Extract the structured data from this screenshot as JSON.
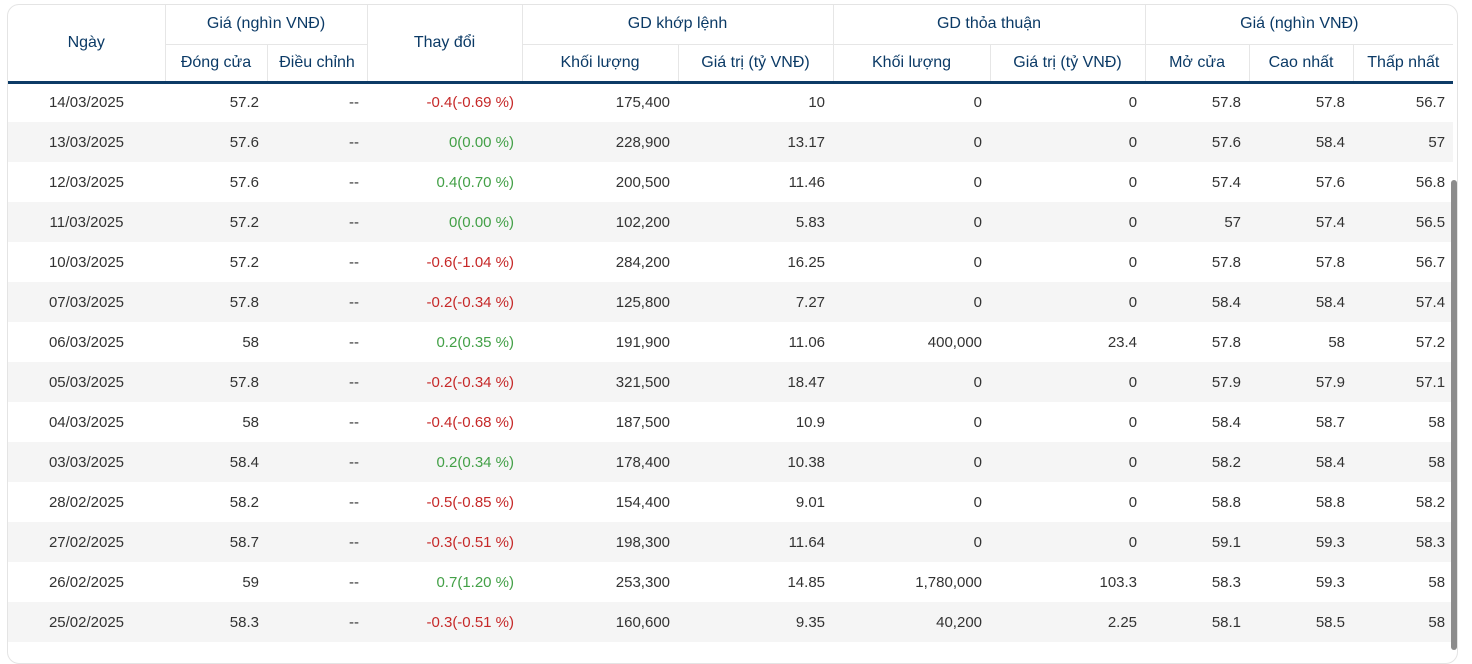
{
  "headers": {
    "date": "Ngày",
    "price_group": "Giá (nghìn VNĐ)",
    "close": "Đóng cửa",
    "adjusted": "Điều chỉnh",
    "change": "Thay đổi",
    "matched_group": "GD khớp lệnh",
    "matched_volume": "Khối lượng",
    "matched_value": "Giá trị (tỷ VNĐ)",
    "deal_group": "GD thỏa thuận",
    "deal_volume": "Khối lượng",
    "deal_value": "Giá trị (tỷ VNĐ)",
    "price_group2": "Giá (nghìn VNĐ)",
    "open": "Mở cửa",
    "high": "Cao nhất",
    "low": "Thấp nhất"
  },
  "colors": {
    "negative": "#c62828",
    "positive": "#43a047",
    "header_text": "#0b3a66"
  },
  "rows": [
    {
      "date": "14/03/2025",
      "close": "57.2",
      "adj": "--",
      "change": "-0.4(-0.69 %)",
      "dir": "neg",
      "mvol": "175,400",
      "mval": "10",
      "dvol": "0",
      "dval": "0",
      "open": "57.8",
      "high": "57.8",
      "low": "56.7"
    },
    {
      "date": "13/03/2025",
      "close": "57.6",
      "adj": "--",
      "change": "0(0.00 %)",
      "dir": "pos",
      "mvol": "228,900",
      "mval": "13.17",
      "dvol": "0",
      "dval": "0",
      "open": "57.6",
      "high": "58.4",
      "low": "57"
    },
    {
      "date": "12/03/2025",
      "close": "57.6",
      "adj": "--",
      "change": "0.4(0.70 %)",
      "dir": "pos",
      "mvol": "200,500",
      "mval": "11.46",
      "dvol": "0",
      "dval": "0",
      "open": "57.4",
      "high": "57.6",
      "low": "56.8"
    },
    {
      "date": "11/03/2025",
      "close": "57.2",
      "adj": "--",
      "change": "0(0.00 %)",
      "dir": "pos",
      "mvol": "102,200",
      "mval": "5.83",
      "dvol": "0",
      "dval": "0",
      "open": "57",
      "high": "57.4",
      "low": "56.5"
    },
    {
      "date": "10/03/2025",
      "close": "57.2",
      "adj": "--",
      "change": "-0.6(-1.04 %)",
      "dir": "neg",
      "mvol": "284,200",
      "mval": "16.25",
      "dvol": "0",
      "dval": "0",
      "open": "57.8",
      "high": "57.8",
      "low": "56.7"
    },
    {
      "date": "07/03/2025",
      "close": "57.8",
      "adj": "--",
      "change": "-0.2(-0.34 %)",
      "dir": "neg",
      "mvol": "125,800",
      "mval": "7.27",
      "dvol": "0",
      "dval": "0",
      "open": "58.4",
      "high": "58.4",
      "low": "57.4"
    },
    {
      "date": "06/03/2025",
      "close": "58",
      "adj": "--",
      "change": "0.2(0.35 %)",
      "dir": "pos",
      "mvol": "191,900",
      "mval": "11.06",
      "dvol": "400,000",
      "dval": "23.4",
      "open": "57.8",
      "high": "58",
      "low": "57.2"
    },
    {
      "date": "05/03/2025",
      "close": "57.8",
      "adj": "--",
      "change": "-0.2(-0.34 %)",
      "dir": "neg",
      "mvol": "321,500",
      "mval": "18.47",
      "dvol": "0",
      "dval": "0",
      "open": "57.9",
      "high": "57.9",
      "low": "57.1"
    },
    {
      "date": "04/03/2025",
      "close": "58",
      "adj": "--",
      "change": "-0.4(-0.68 %)",
      "dir": "neg",
      "mvol": "187,500",
      "mval": "10.9",
      "dvol": "0",
      "dval": "0",
      "open": "58.4",
      "high": "58.7",
      "low": "58"
    },
    {
      "date": "03/03/2025",
      "close": "58.4",
      "adj": "--",
      "change": "0.2(0.34 %)",
      "dir": "pos",
      "mvol": "178,400",
      "mval": "10.38",
      "dvol": "0",
      "dval": "0",
      "open": "58.2",
      "high": "58.4",
      "low": "58"
    },
    {
      "date": "28/02/2025",
      "close": "58.2",
      "adj": "--",
      "change": "-0.5(-0.85 %)",
      "dir": "neg",
      "mvol": "154,400",
      "mval": "9.01",
      "dvol": "0",
      "dval": "0",
      "open": "58.8",
      "high": "58.8",
      "low": "58.2"
    },
    {
      "date": "27/02/2025",
      "close": "58.7",
      "adj": "--",
      "change": "-0.3(-0.51 %)",
      "dir": "neg",
      "mvol": "198,300",
      "mval": "11.64",
      "dvol": "0",
      "dval": "0",
      "open": "59.1",
      "high": "59.3",
      "low": "58.3"
    },
    {
      "date": "26/02/2025",
      "close": "59",
      "adj": "--",
      "change": "0.7(1.20 %)",
      "dir": "pos",
      "mvol": "253,300",
      "mval": "14.85",
      "dvol": "1,780,000",
      "dval": "103.3",
      "open": "58.3",
      "high": "59.3",
      "low": "58"
    },
    {
      "date": "25/02/2025",
      "close": "58.3",
      "adj": "--",
      "change": "-0.3(-0.51 %)",
      "dir": "neg",
      "mvol": "160,600",
      "mval": "9.35",
      "dvol": "40,200",
      "dval": "2.25",
      "open": "58.1",
      "high": "58.5",
      "low": "58"
    }
  ]
}
